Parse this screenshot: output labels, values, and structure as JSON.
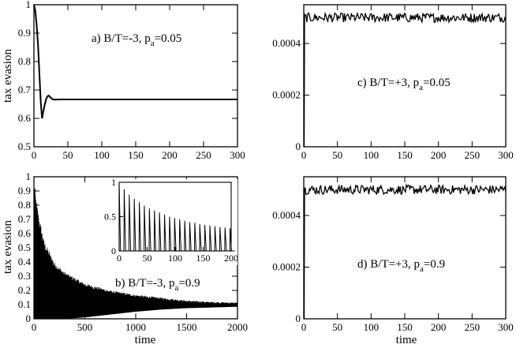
{
  "chart_data": [
    {
      "id": "a",
      "type": "line",
      "annotation": "a) B/T=-3, p",
      "annotation_sub": "a",
      "annotation_tail": "=0.05",
      "ylabel": "tax evasion",
      "xlabel": "",
      "xlim": [
        0,
        300
      ],
      "ylim": [
        0.5,
        1.0
      ],
      "xticks": [
        0,
        50,
        100,
        150,
        200,
        250,
        300
      ],
      "yticks": [
        0.5,
        0.6,
        0.7,
        0.8,
        0.9,
        1.0
      ],
      "ytick_labels": [
        "0.5",
        "0.6",
        "0.7",
        "0.8",
        "0.9",
        "1"
      ],
      "grid": false,
      "series": [
        {
          "x": [
            0,
            2,
            4,
            6,
            8,
            10,
            12,
            14,
            16,
            18,
            20,
            22,
            24,
            26,
            28,
            30,
            35,
            40,
            50,
            100,
            150,
            200,
            250,
            300
          ],
          "y": [
            1.0,
            0.98,
            0.93,
            0.86,
            0.76,
            0.66,
            0.6,
            0.625,
            0.65,
            0.668,
            0.678,
            0.68,
            0.675,
            0.67,
            0.667,
            0.666,
            0.6665,
            0.6666,
            0.6667,
            0.6667,
            0.6667,
            0.6667,
            0.6667,
            0.6667
          ]
        }
      ]
    },
    {
      "id": "b",
      "type": "line",
      "annotation": "b) B/T=-3, p",
      "annotation_sub": "a",
      "annotation_tail": "=0.9",
      "ylabel": "tax evasion",
      "xlabel": "time",
      "xlim": [
        0,
        2000
      ],
      "ylim": [
        0,
        1.0
      ],
      "xticks": [
        0,
        500,
        1000,
        1500,
        2000
      ],
      "yticks": [
        0,
        0.1,
        0.2,
        0.3,
        0.4,
        0.5,
        0.6,
        0.7,
        0.8,
        0.9,
        1.0
      ],
      "ytick_labels": [
        "0",
        "0.1",
        "0.2",
        "0.3",
        "0.4",
        "0.5",
        "0.6",
        "0.7",
        "0.8",
        "0.9",
        "1"
      ],
      "grid": false,
      "description": "damped oscillation between 0 and a decaying upper envelope, settling near 0.1",
      "envelope_points": {
        "time": [
          0,
          20,
          50,
          100,
          200,
          300,
          500,
          750,
          1000,
          1250,
          1500,
          1750,
          2000
        ],
        "upper": [
          1.0,
          0.85,
          0.72,
          0.55,
          0.4,
          0.33,
          0.25,
          0.2,
          0.17,
          0.15,
          0.13,
          0.12,
          0.115
        ],
        "lower": [
          0.0,
          0.0,
          0.0,
          0.0,
          0.0,
          0.0,
          0.01,
          0.03,
          0.05,
          0.065,
          0.075,
          0.08,
          0.085
        ]
      },
      "inset": {
        "type": "line",
        "xlim": [
          0,
          200
        ],
        "ylim": [
          0,
          1.0
        ],
        "xticks": [
          0,
          50,
          100,
          150,
          200
        ],
        "yticks": [
          0,
          0.5,
          1.0
        ],
        "ytick_labels": [
          "0",
          "0.5",
          "1"
        ],
        "spike_times": [
          0,
          9,
          18,
          27,
          36,
          45,
          54,
          63,
          72,
          81,
          90,
          99,
          108,
          117,
          126,
          135,
          144,
          153,
          162,
          171,
          180,
          189,
          198
        ],
        "spike_heights": [
          1.0,
          0.9,
          0.82,
          0.76,
          0.71,
          0.66,
          0.62,
          0.59,
          0.56,
          0.53,
          0.5,
          0.48,
          0.46,
          0.44,
          0.42,
          0.41,
          0.39,
          0.38,
          0.37,
          0.36,
          0.35,
          0.34,
          0.33
        ]
      }
    },
    {
      "id": "c",
      "type": "line",
      "annotation": "c) B/T=+3, p",
      "annotation_sub": "a",
      "annotation_tail": "=0.05",
      "ylabel": "",
      "xlabel": "",
      "xlim": [
        0,
        300
      ],
      "ylim": [
        0,
        0.00055
      ],
      "xticks": [
        0,
        50,
        100,
        150,
        200,
        250,
        300
      ],
      "yticks": [
        0,
        0.0002,
        0.0004
      ],
      "ytick_labels": [
        "0",
        "0.0002",
        "0.0004"
      ],
      "grid": false,
      "description": "jumps from 0 at t=0 to about 0.0005 and fluctuates around 0.0005 (roughly 0.00048 to 0.00052)",
      "level": 0.0005,
      "fluctuation": 1.8e-05
    },
    {
      "id": "d",
      "type": "line",
      "annotation": "d) B/T=+3, p",
      "annotation_sub": "a",
      "annotation_tail": "=0.9",
      "ylabel": "",
      "xlabel": "time",
      "xlim": [
        0,
        300
      ],
      "ylim": [
        0,
        0.00055
      ],
      "xticks": [
        0,
        50,
        100,
        150,
        200,
        250,
        300
      ],
      "yticks": [
        0,
        0.0002,
        0.0004
      ],
      "ytick_labels": [
        "0",
        "0.0002",
        "0.0004"
      ],
      "grid": false,
      "description": "jumps from 0 at t=0 to about 0.0005 and fluctuates around 0.0005 (roughly 0.00048 to 0.00052)",
      "level": 0.0005,
      "fluctuation": 1.8e-05
    }
  ]
}
